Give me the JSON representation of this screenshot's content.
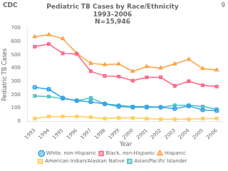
{
  "chart_data": {
    "type": "line",
    "title": [
      "Pediatric TB Cases by Race/Ethnicity",
      "1993–2006",
      "N=15,946"
    ],
    "x_label": "Year",
    "y_label": "Pediatric TB Cases",
    "x": [
      1993,
      1994,
      1995,
      1996,
      1997,
      1998,
      1999,
      2000,
      2001,
      2002,
      2003,
      2004,
      2005,
      2006
    ],
    "xlim": [
      1992.5,
      2006.5
    ],
    "xticks": [
      1993,
      1994,
      1995,
      1996,
      1997,
      1998,
      1999,
      2000,
      2001,
      2002,
      2003,
      2004,
      2005,
      2006
    ],
    "ylim": [
      0,
      700
    ],
    "yticks": [
      0,
      100,
      200,
      300,
      400,
      500,
      600,
      700
    ],
    "grid": false,
    "legend": "bottom",
    "series": [
      {
        "name": "White, non-Hispanic",
        "marker": "circle",
        "values": [
          255,
          240,
          175,
          155,
          145,
          130,
          110,
          105,
          105,
          105,
          95,
          115,
          85,
          80
        ]
      },
      {
        "name": "Black, non-Hispanic",
        "marker": "square",
        "values": [
          560,
          580,
          510,
          505,
          375,
          340,
          335,
          305,
          330,
          330,
          265,
          300,
          270,
          260
        ]
      },
      {
        "name": "Hispanic",
        "marker": "triangle",
        "values": [
          635,
          650,
          620,
          510,
          435,
          425,
          430,
          375,
          410,
          400,
          430,
          465,
          395,
          385
        ]
      },
      {
        "name": "American Indian/Alaskan Native",
        "marker": "square",
        "values": [
          20,
          35,
          35,
          35,
          30,
          20,
          25,
          25,
          20,
          15,
          15,
          15,
          20,
          20
        ]
      },
      {
        "name": "Asian/Pacific Islander",
        "marker": "square",
        "values": [
          190,
          185,
          170,
          155,
          175,
          130,
          120,
          110,
          110,
          105,
          120,
          120,
          110,
          90
        ]
      }
    ],
    "annotations": [
      "9",
      "CDC"
    ]
  }
}
